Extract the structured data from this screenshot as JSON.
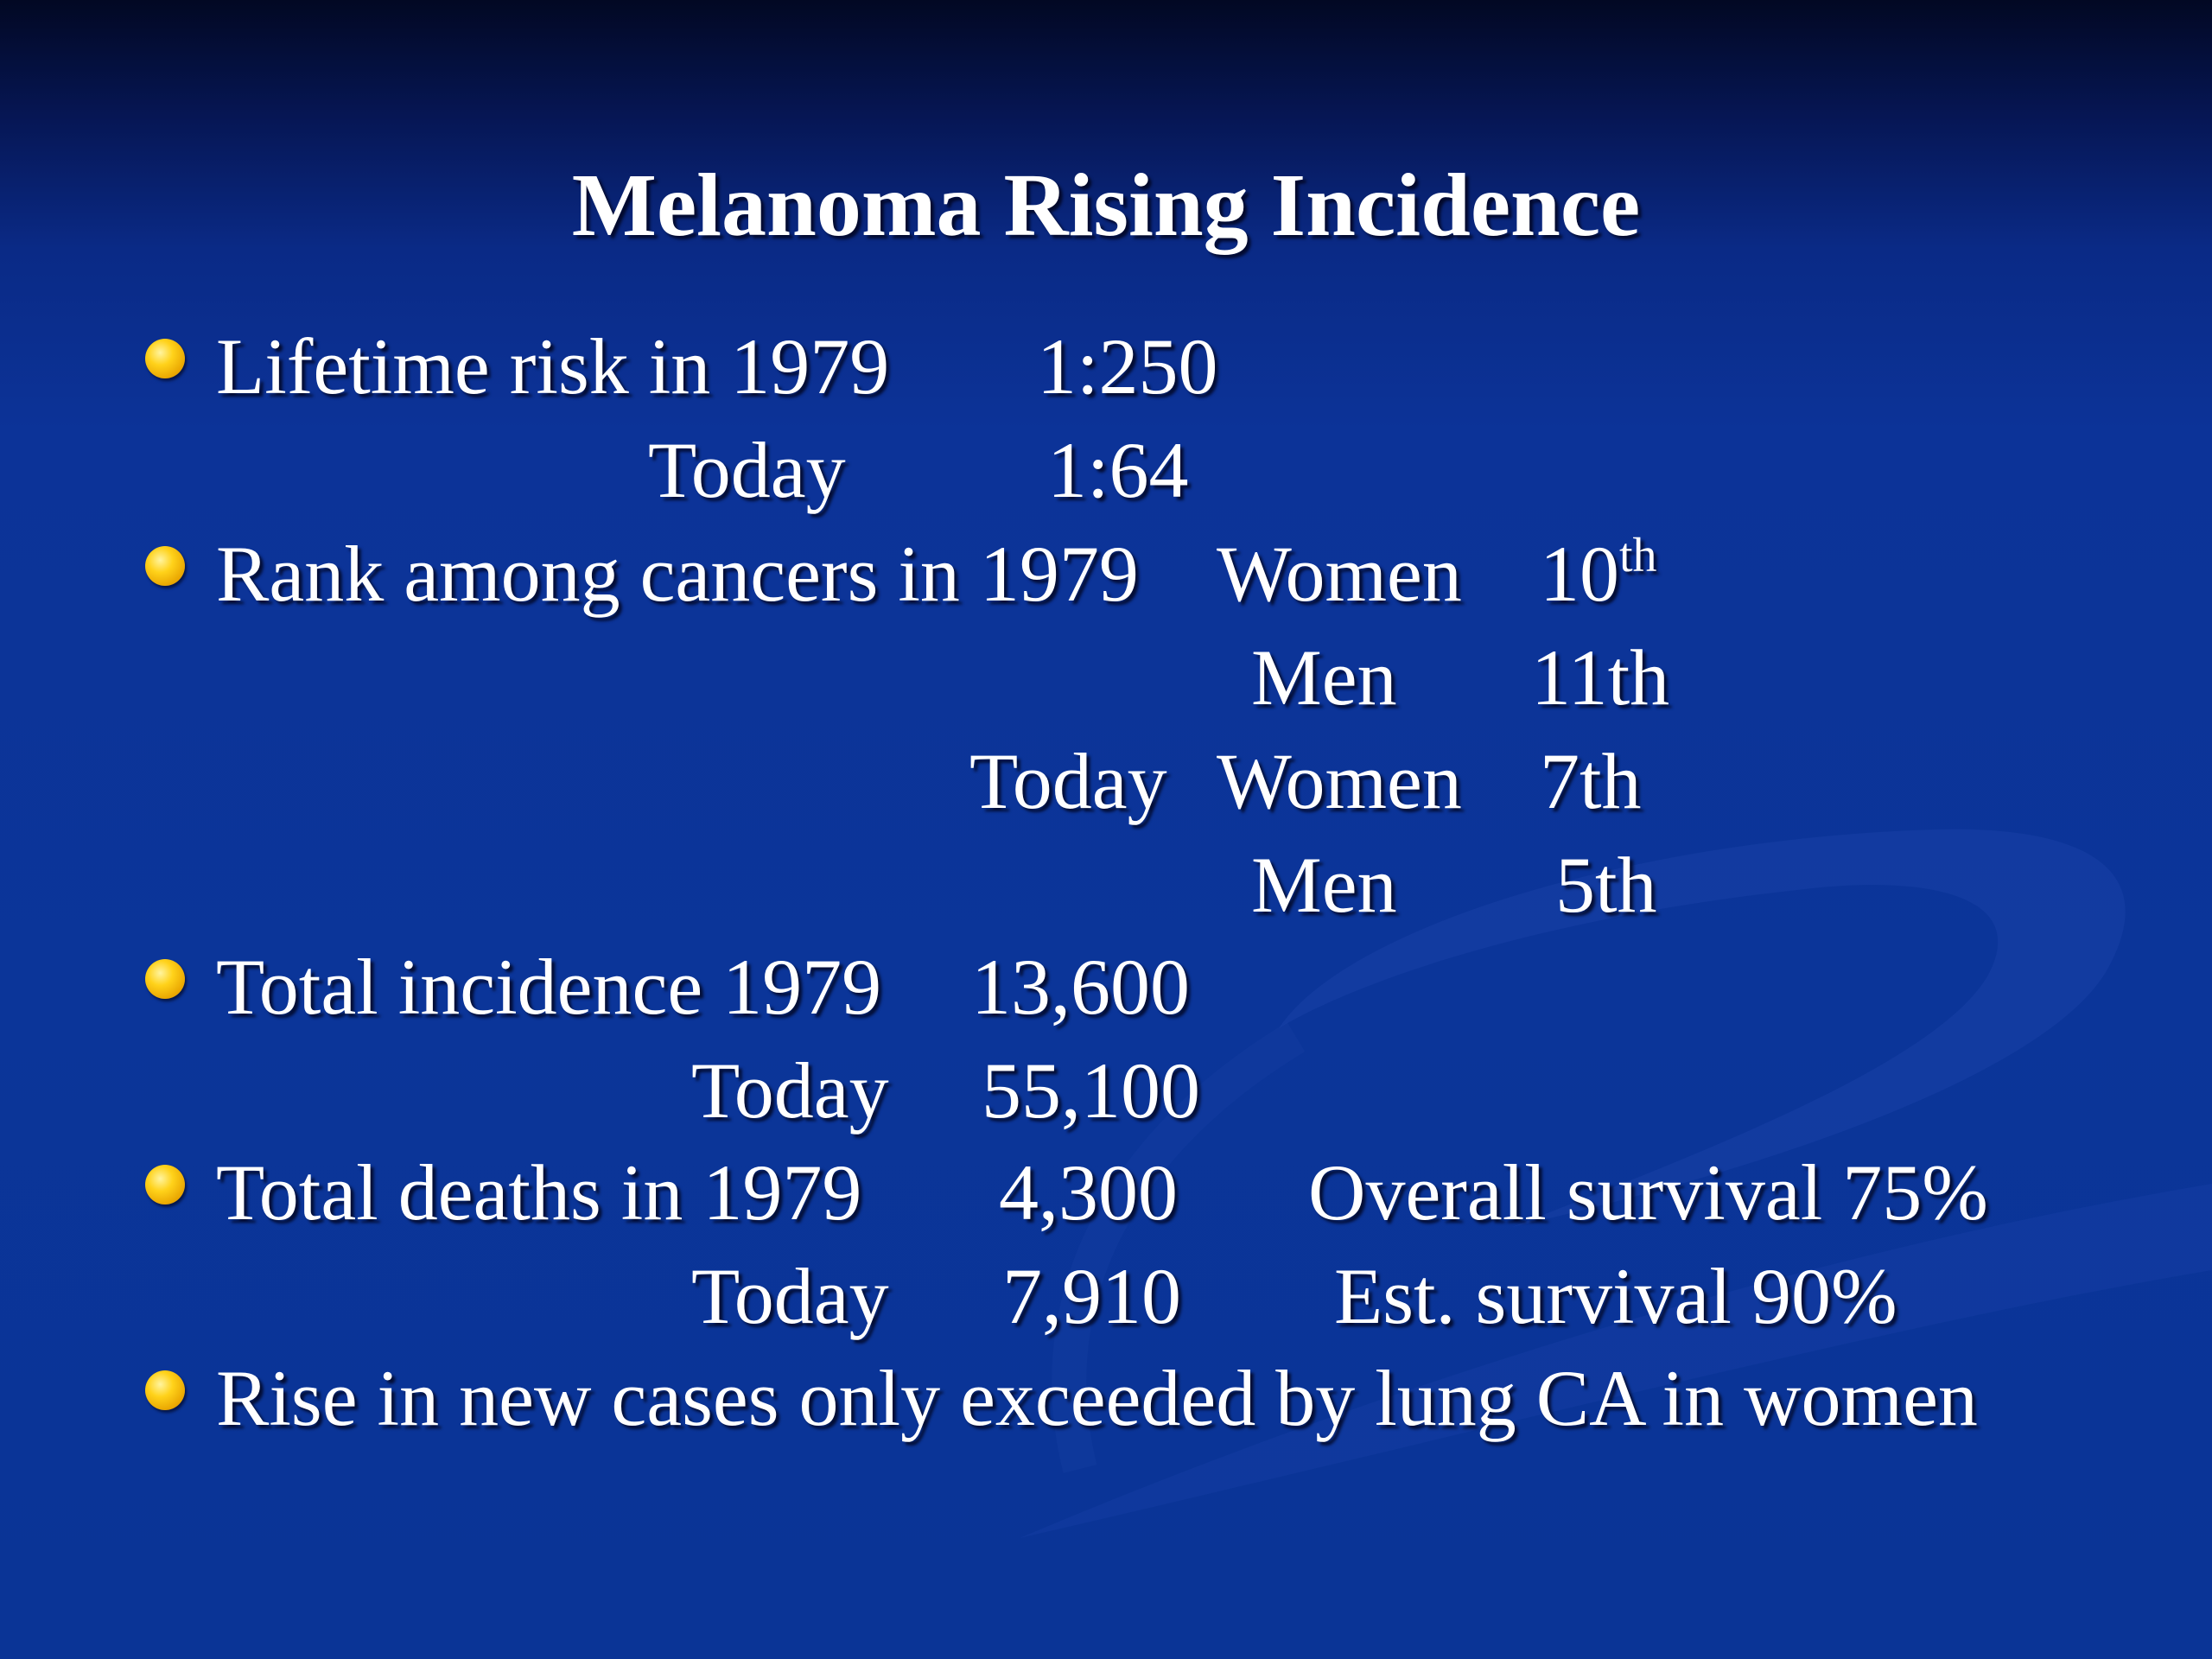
{
  "slide": {
    "title": "Melanoma Rising Incidence",
    "bullets": [
      {
        "label": "Lifetime risk in 1979",
        "value": "1:250",
        "today_label": "Today",
        "today_value": "1:64"
      },
      {
        "label": "Rank among cancers in 1979",
        "rows": [
          {
            "period": "",
            "group": "Women",
            "rank_num": "10",
            "rank_suffix": "th"
          },
          {
            "period": "",
            "group": "Men",
            "rank": "11th"
          },
          {
            "period": "Today",
            "group": "Women",
            "rank": "7th"
          },
          {
            "period": "",
            "group": "Men",
            "rank": "5th"
          }
        ]
      },
      {
        "label": "Total incidence 1979",
        "value": "13,600",
        "today_label": "Today",
        "today_value": "55,100"
      },
      {
        "label": "Total deaths in 1979",
        "value": "4,300",
        "note": "Overall survival 75%",
        "today_label": "Today",
        "today_value": "7,910",
        "today_note": "Est. survival 90%"
      },
      {
        "label": "Rise in new cases only exceeded by lung CA in women"
      }
    ]
  }
}
